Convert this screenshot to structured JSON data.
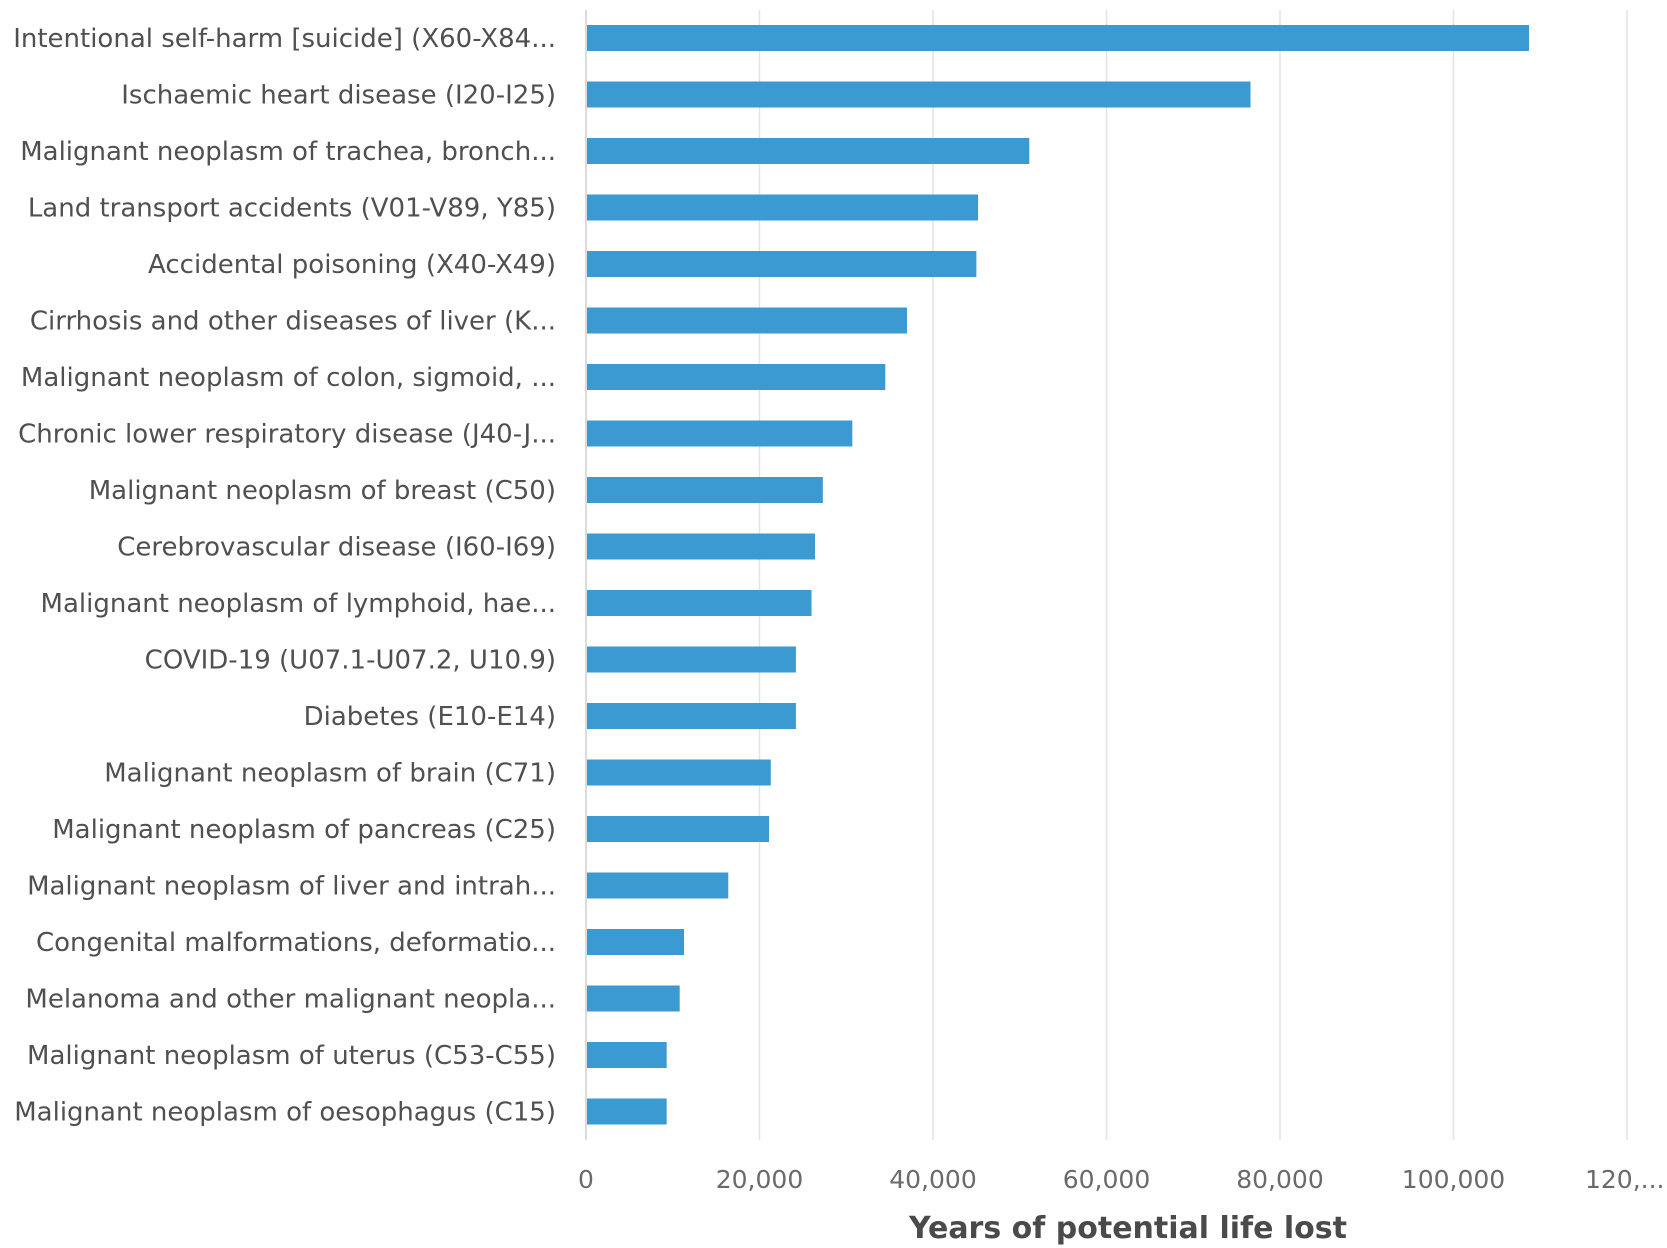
{
  "chart_data": {
    "type": "bar",
    "orientation": "horizontal",
    "categories": [
      "Intentional self-harm [suicide] (X60-X84...",
      "Ischaemic heart disease (I20-I25)",
      "Malignant neoplasm of trachea, bronch...",
      "Land transport accidents (V01-V89, Y85)",
      "Accidental poisoning (X40-X49)",
      "Cirrhosis and other diseases of liver (K...",
      "Malignant neoplasm of colon, sigmoid, ...",
      "Chronic lower respiratory disease (J40-J...",
      "Malignant neoplasm of breast (C50)",
      "Cerebrovascular disease (I60-I69)",
      "Malignant neoplasm of lymphoid, hae...",
      "COVID-19 (U07.1-U07.2, U10.9)",
      "Diabetes (E10-E14)",
      "Malignant neoplasm of brain (C71)",
      "Malignant neoplasm of pancreas (C25)",
      "Malignant neoplasm of liver and intrah...",
      "Congenital malformations, deformatio...",
      "Melanoma and other malignant neopla...",
      "Malignant neoplasm of uterus (C53-C55)",
      "Malignant neoplasm of oesophagus (C15)"
    ],
    "values": [
      108700,
      76600,
      51100,
      45200,
      45000,
      37000,
      34500,
      30700,
      27300,
      26400,
      26000,
      24200,
      24200,
      21300,
      21100,
      16400,
      11300,
      10800,
      9300,
      9300
    ],
    "xlabel": "Years of potential life lost",
    "ylabel": "",
    "title": "",
    "xlim": [
      0,
      120000
    ],
    "xticks": [
      "0",
      "20,000",
      "40,000",
      "60,000",
      "80,000",
      "100,000",
      "120,..."
    ],
    "grid": true,
    "bar_color": "#3b9ad2"
  }
}
